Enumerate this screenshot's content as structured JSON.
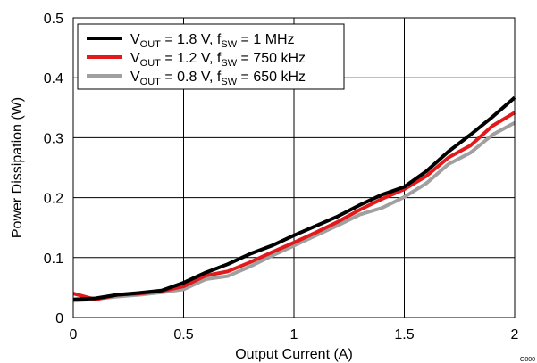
{
  "chart_data": {
    "type": "line",
    "xlabel": "Output Current (A)",
    "ylabel": "Power Dissipation (W)",
    "xlim": [
      0,
      2
    ],
    "ylim": [
      0,
      0.5
    ],
    "x_ticks": [
      0,
      0.5,
      1,
      1.5,
      2
    ],
    "x_tick_labels": [
      "0",
      "0.5",
      "1",
      "1.5",
      "2"
    ],
    "y_ticks": [
      0,
      0.1,
      0.2,
      0.3,
      0.4,
      0.5
    ],
    "y_tick_labels": [
      "0",
      "0.1",
      "0.2",
      "0.3",
      "0.4",
      "0.5"
    ],
    "grid": true,
    "legend_position": "top-left",
    "figure_id": "G000",
    "series": [
      {
        "name": "V_OUT = 1.8 V, f_SW = 1 MHz",
        "legend": {
          "v_pre": "V",
          "v_sub": "OUT",
          "v_mid": " = 1.8 V, f",
          "f_sub": "SW",
          "f_post": " = 1 MHz"
        },
        "color": "#000000",
        "x": [
          0,
          0.1,
          0.2,
          0.3,
          0.4,
          0.5,
          0.6,
          0.7,
          0.8,
          0.9,
          1.0,
          1.1,
          1.2,
          1.3,
          1.4,
          1.5,
          1.6,
          1.7,
          1.8,
          1.9,
          2.0
        ],
        "y": [
          0.03,
          0.032,
          0.038,
          0.041,
          0.045,
          0.058,
          0.075,
          0.089,
          0.106,
          0.12,
          0.137,
          0.153,
          0.169,
          0.188,
          0.205,
          0.218,
          0.244,
          0.277,
          0.305,
          0.335,
          0.367
        ]
      },
      {
        "name": "V_OUT = 1.2 V, f_SW = 750 kHz",
        "legend": {
          "v_pre": "V",
          "v_sub": "OUT",
          "v_mid": " = 1.2 V, f",
          "f_sub": "SW",
          "f_post": " = 750 kHz"
        },
        "color": "#e31a1c",
        "x": [
          0,
          0.1,
          0.2,
          0.3,
          0.4,
          0.5,
          0.6,
          0.7,
          0.8,
          0.9,
          1.0,
          1.1,
          1.2,
          1.3,
          1.4,
          1.5,
          1.6,
          1.7,
          1.8,
          1.9,
          2.0
        ],
        "y": [
          0.04,
          0.03,
          0.038,
          0.04,
          0.044,
          0.052,
          0.07,
          0.077,
          0.092,
          0.109,
          0.125,
          0.142,
          0.16,
          0.18,
          0.198,
          0.214,
          0.236,
          0.267,
          0.287,
          0.32,
          0.342
        ]
      },
      {
        "name": "V_OUT = 0.8 V, f_SW = 650 kHz",
        "legend": {
          "v_pre": "V",
          "v_sub": "OUT",
          "v_mid": " = 0.8 V, f",
          "f_sub": "SW",
          "f_post": " = 650 kHz"
        },
        "color": "#a0a0a0",
        "x": [
          0,
          0.1,
          0.2,
          0.3,
          0.4,
          0.5,
          0.6,
          0.7,
          0.8,
          0.9,
          1.0,
          1.1,
          1.2,
          1.3,
          1.4,
          1.5,
          1.6,
          1.7,
          1.8,
          1.9,
          2.0
        ],
        "y": [
          0.028,
          0.031,
          0.035,
          0.038,
          0.042,
          0.047,
          0.064,
          0.069,
          0.085,
          0.103,
          0.12,
          0.137,
          0.154,
          0.172,
          0.183,
          0.201,
          0.224,
          0.256,
          0.275,
          0.305,
          0.325
        ]
      }
    ]
  }
}
